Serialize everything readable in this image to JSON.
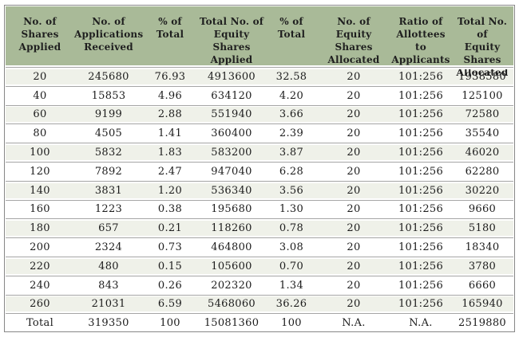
{
  "table": {
    "columns": [
      {
        "id": "shares-applied",
        "label": "No. of\nShares\nApplied"
      },
      {
        "id": "applications-received",
        "label": "No. of\nApplications\nReceived"
      },
      {
        "id": "pct-of-total-applications",
        "label": "% of Total"
      },
      {
        "id": "equity-shares-applied",
        "label": "Total No. of\nEquity Shares\nApplied"
      },
      {
        "id": "pct-of-total-shares",
        "label": "% of\nTotal"
      },
      {
        "id": "equity-shares-allocated",
        "label": "No. of\nEquity\nShares\nAllocated"
      },
      {
        "id": "ratio-allottees",
        "label": "Ratio of\nAllottees to\nApplicants"
      },
      {
        "id": "total-equity-allocated",
        "label": "Total No. of\nEquity\nShares\nAllocated"
      }
    ],
    "rows": [
      [
        "20",
        "245680",
        "76.93",
        "4913600",
        "32.58",
        "20",
        "101:256",
        "1938580"
      ],
      [
        "40",
        "15853",
        "4.96",
        "634120",
        "4.20",
        "20",
        "101:256",
        "125100"
      ],
      [
        "60",
        "9199",
        "2.88",
        "551940",
        "3.66",
        "20",
        "101:256",
        "72580"
      ],
      [
        "80",
        "4505",
        "1.41",
        "360400",
        "2.39",
        "20",
        "101:256",
        "35540"
      ],
      [
        "100",
        "5832",
        "1.83",
        "583200",
        "3.87",
        "20",
        "101:256",
        "46020"
      ],
      [
        "120",
        "7892",
        "2.47",
        "947040",
        "6.28",
        "20",
        "101:256",
        "62280"
      ],
      [
        "140",
        "3831",
        "1.20",
        "536340",
        "3.56",
        "20",
        "101:256",
        "30220"
      ],
      [
        "160",
        "1223",
        "0.38",
        "195680",
        "1.30",
        "20",
        "101:256",
        "9660"
      ],
      [
        "180",
        "657",
        "0.21",
        "118260",
        "0.78",
        "20",
        "101:256",
        "5180"
      ],
      [
        "200",
        "2324",
        "0.73",
        "464800",
        "3.08",
        "20",
        "101:256",
        "18340"
      ],
      [
        "220",
        "480",
        "0.15",
        "105600",
        "0.70",
        "20",
        "101:256",
        "3780"
      ],
      [
        "240",
        "843",
        "0.26",
        "202320",
        "1.34",
        "20",
        "101:256",
        "6660"
      ],
      [
        "260",
        "21031",
        "6.59",
        "5468060",
        "36.26",
        "20",
        "101:256",
        "165940"
      ],
      [
        "Total",
        "319350",
        "100",
        "15081360",
        "100",
        "N.A.",
        "N.A.",
        "2519880"
      ]
    ]
  },
  "colors": {
    "header_background": "#a9ba98",
    "stripe_background": "#eff1e9",
    "plain_background": "#ffffff",
    "border": "#878787",
    "separator_line": "#a5a5a5",
    "text": "#1c1c1c"
  }
}
